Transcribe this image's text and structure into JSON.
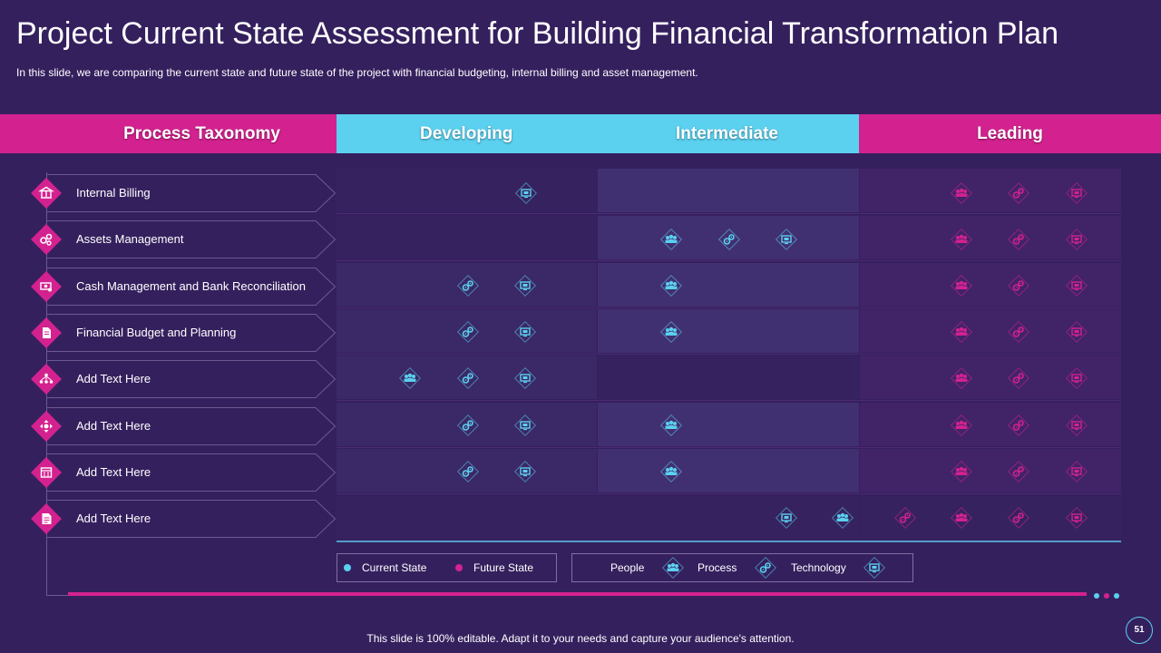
{
  "slide": {
    "title": "Project Current State Assessment for Building Financial Transformation Plan",
    "subtitle": "In this slide, we are comparing the current state and future state of the project with financial budgeting, internal billing and asset management.",
    "footer": "This slide is 100% editable. Adapt it to your needs and capture your audience's attention.",
    "page_number": "51"
  },
  "headers": {
    "process_taxonomy": "Process Taxonomy",
    "developing": "Developing",
    "intermediate": "Intermediate",
    "leading": "Leading"
  },
  "taxonomy": [
    {
      "label": "Internal Billing",
      "icon": "bank-icon"
    },
    {
      "label": "Assets Management",
      "icon": "gears-icon"
    },
    {
      "label": "Cash Management  and Bank Reconciliation",
      "icon": "cash-icon"
    },
    {
      "label": "Financial Budget and Planning",
      "icon": "document-icon"
    },
    {
      "label": "Add Text Here",
      "icon": "network-icon"
    },
    {
      "label": "Add Text Here",
      "icon": "arrows-icon"
    },
    {
      "label": "Add Text Here",
      "icon": "calendar-icon"
    },
    {
      "label": "Add Text Here",
      "icon": "notes-icon"
    }
  ],
  "grid_rows": [
    {
      "current": [
        "technology"
      ],
      "current_stage": "developing",
      "future": [
        "people",
        "process",
        "technology"
      ]
    },
    {
      "current": [
        "people",
        "process",
        "technology"
      ],
      "current_stage": "intermediate",
      "future": [
        "people",
        "process",
        "technology"
      ]
    },
    {
      "current": [
        "process",
        "technology",
        "people"
      ],
      "current_stage": "developing-intermediate",
      "future": [
        "people",
        "process",
        "technology"
      ]
    },
    {
      "current": [
        "process",
        "technology",
        "people"
      ],
      "current_stage": "developing-intermediate",
      "future": [
        "people",
        "process",
        "technology"
      ]
    },
    {
      "current": [
        "people",
        "process",
        "technology"
      ],
      "current_stage": "developing",
      "future": [
        "people",
        "process",
        "technology"
      ]
    },
    {
      "current": [
        "process",
        "technology",
        "people"
      ],
      "current_stage": "developing-intermediate",
      "future": [
        "people",
        "process",
        "technology"
      ]
    },
    {
      "current": [
        "process",
        "technology",
        "people"
      ],
      "current_stage": "developing-intermediate",
      "future": [
        "people",
        "process",
        "technology"
      ]
    },
    {
      "current": [
        "technology",
        "people"
      ],
      "current_stage": "intermediate",
      "future": [
        "process",
        "people",
        "process",
        "technology"
      ]
    }
  ],
  "legend": {
    "current_state": "Current State",
    "future_state": "Future State",
    "people": "People",
    "process": "Process",
    "technology": "Technology"
  },
  "colors": {
    "background": "#35205e",
    "accent_pink": "#d3228f",
    "accent_cyan": "#5bd0ef",
    "current_state": "#5bd0ef",
    "future_state": "#d3228f"
  },
  "icons": {
    "people": "people-icon",
    "process": "process-gears-icon",
    "technology": "technology-monitor-icon"
  }
}
